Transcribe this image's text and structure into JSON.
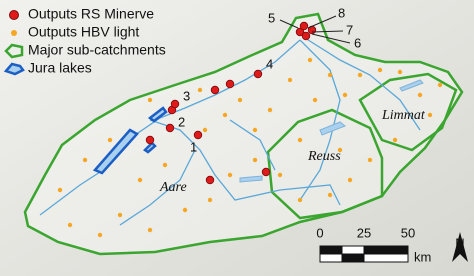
{
  "legend": {
    "items": [
      "Outputs RS Minerve",
      "Outputs HBV light",
      "Major sub-catchments",
      "Jura lakes"
    ]
  },
  "sites": [
    "1",
    "2",
    "3",
    "4",
    "5",
    "6",
    "7",
    "8"
  ],
  "areas": [
    "Aare",
    "Reuss",
    "Limmat"
  ],
  "scale_bar": {
    "labels": [
      "0",
      "25",
      "50"
    ],
    "unit": "km"
  },
  "north": "N"
}
